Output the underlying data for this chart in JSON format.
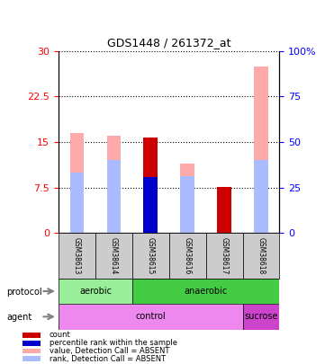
{
  "title": "GDS1448 / 261372_at",
  "samples": [
    "GSM38613",
    "GSM38614",
    "GSM38615",
    "GSM38616",
    "GSM38617",
    "GSM38618"
  ],
  "left_ylim": [
    0,
    30
  ],
  "right_ylim": [
    0,
    100
  ],
  "left_yticks": [
    0,
    7.5,
    15,
    22.5,
    30
  ],
  "right_yticks": [
    0,
    25,
    50,
    75,
    100
  ],
  "right_yticklabels": [
    "0",
    "25",
    "50",
    "75",
    "100%"
  ],
  "count_values": [
    null,
    null,
    15.8,
    null,
    7.6,
    null
  ],
  "rank_values": [
    null,
    null,
    9.2,
    null,
    null,
    null
  ],
  "absent_value_bars": [
    16.5,
    16.0,
    null,
    11.5,
    null,
    27.5
  ],
  "absent_rank_bars": [
    10.0,
    12.0,
    null,
    9.3,
    null,
    12.0
  ],
  "color_count": "#cc0000",
  "color_rank": "#0000cc",
  "color_absent_value": "#ffaaaa",
  "color_absent_rank": "#aabbff",
  "legend_items": [
    {
      "color": "#cc0000",
      "label": "count"
    },
    {
      "color": "#0000cc",
      "label": "percentile rank within the sample"
    },
    {
      "color": "#ffaaaa",
      "label": "value, Detection Call = ABSENT"
    },
    {
      "color": "#aabbff",
      "label": "rank, Detection Call = ABSENT"
    }
  ]
}
